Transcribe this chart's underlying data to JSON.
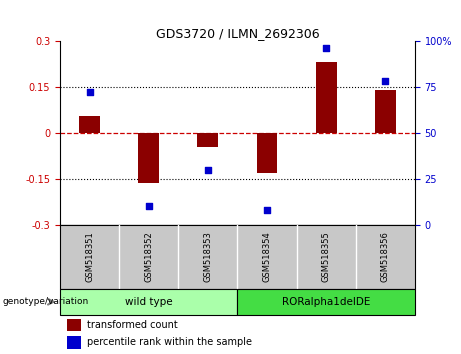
{
  "title": "GDS3720 / ILMN_2692306",
  "categories": [
    "GSM518351",
    "GSM518352",
    "GSM518353",
    "GSM518354",
    "GSM518355",
    "GSM518356"
  ],
  "bar_values": [
    0.055,
    -0.165,
    -0.045,
    -0.13,
    0.23,
    0.14
  ],
  "scatter_values": [
    72,
    10,
    30,
    8,
    96,
    78
  ],
  "ylim_left": [
    -0.3,
    0.3
  ],
  "ylim_right": [
    0,
    100
  ],
  "yticks_left": [
    -0.3,
    -0.15,
    0,
    0.15,
    0.3
  ],
  "yticks_right": [
    0,
    25,
    50,
    75,
    100
  ],
  "bar_color": "#8B0000",
  "scatter_color": "#0000CD",
  "hline_color": "#CC0000",
  "dotted_color": "#000000",
  "group1_label": "wild type",
  "group2_label": "RORalpha1delDE",
  "group1_n": 3,
  "group2_n": 3,
  "group1_color": "#AAFFAA",
  "group2_color": "#44DD44",
  "sample_box_color": "#C8C8C8",
  "genotype_label": "genotype/variation",
  "legend_bar_label": "transformed count",
  "legend_scatter_label": "percentile rank within the sample",
  "bg_color": "#FFFFFF",
  "bar_width": 0.35
}
